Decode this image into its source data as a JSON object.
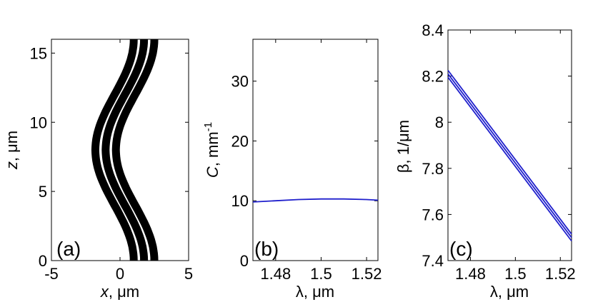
{
  "chart_data": [
    {
      "panel": "(a)",
      "type": "line",
      "xlabel_var": "x",
      "xlabel_unit": ", μm",
      "ylabel_var": "z",
      "ylabel_unit": ", μm",
      "xlim": [
        -5,
        5
      ],
      "ylim": [
        0,
        16
      ],
      "xticks": [
        "-5",
        "0",
        "5"
      ],
      "yticks": [
        "0",
        "5",
        "10",
        "15"
      ],
      "series_color": "#000000",
      "series": [
        {
          "x": [
            1.0,
            0.7,
            -0.2,
            -1.2,
            -1.8,
            -1.2,
            -0.2,
            0.7,
            1.0
          ],
          "z": [
            0,
            2,
            4,
            6,
            8,
            10,
            12,
            14,
            16
          ]
        },
        {
          "x": [
            1.75,
            1.45,
            0.55,
            -0.45,
            -1.05,
            -0.45,
            0.55,
            1.45,
            1.75
          ],
          "z": [
            0,
            2,
            4,
            6,
            8,
            10,
            12,
            14,
            16
          ]
        },
        {
          "x": [
            2.5,
            2.2,
            1.3,
            0.3,
            -0.3,
            0.3,
            1.3,
            2.2,
            2.5
          ],
          "z": [
            0,
            2,
            4,
            6,
            8,
            10,
            12,
            14,
            16
          ]
        }
      ]
    },
    {
      "panel": "(b)",
      "type": "line",
      "xlabel": "λ, μm",
      "ylabel_var": "C",
      "ylabel_unit": ", mm",
      "ylabel_sup": "-1",
      "xlim": [
        1.47,
        1.525
      ],
      "ylim": [
        0,
        37
      ],
      "xticks": [
        "1.48",
        "1.5",
        "1.52"
      ],
      "yticks": [
        "0",
        "10",
        "20",
        "30"
      ],
      "series_color": "#1f1fcc",
      "series": [
        {
          "x": [
            1.47,
            1.48,
            1.49,
            1.5,
            1.51,
            1.52,
            1.525
          ],
          "y": [
            9.8,
            10.0,
            10.2,
            10.3,
            10.3,
            10.2,
            10.1
          ]
        }
      ]
    },
    {
      "panel": "(c)",
      "type": "line",
      "xlabel": "λ, μm",
      "ylabel": "β, 1/μm",
      "xlim": [
        1.47,
        1.525
      ],
      "ylim": [
        7.4,
        8.4
      ],
      "xticks": [
        "1.48",
        "1.5",
        "1.52"
      ],
      "yticks": [
        "7.4",
        "7.6",
        "7.8",
        "8",
        "8.2",
        "8.4"
      ],
      "series_color": "#1f1fcc",
      "series": [
        {
          "x": [
            1.47,
            1.525
          ],
          "y": [
            8.225,
            7.515
          ]
        },
        {
          "x": [
            1.47,
            1.525
          ],
          "y": [
            8.21,
            7.5
          ]
        },
        {
          "x": [
            1.47,
            1.525
          ],
          "y": [
            8.195,
            7.485
          ]
        }
      ]
    }
  ]
}
